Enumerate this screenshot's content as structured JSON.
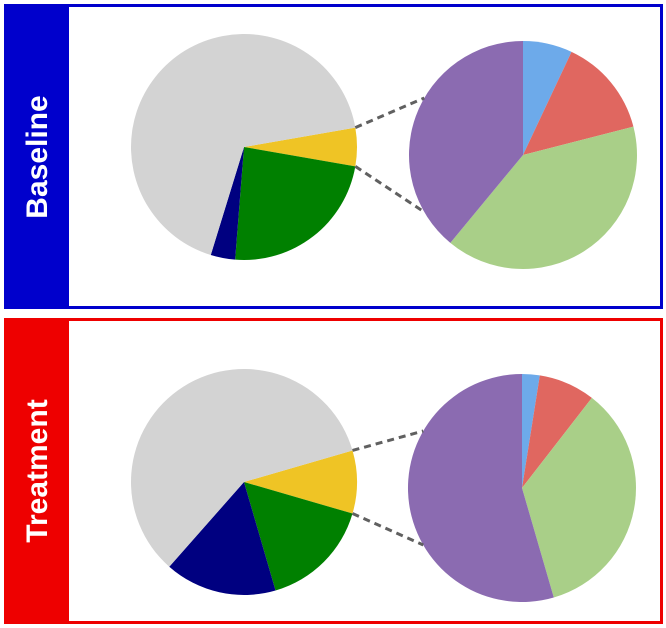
{
  "colors": {
    "baseline_frame": "#0000cc",
    "treatment_frame": "#ee0000",
    "gray": "#d3d3d3",
    "yellow": "#efc425",
    "green": "#008000",
    "navy": "#000080",
    "purple": "#8b6bb1",
    "blue": "#6daaea",
    "salmon": "#e06760",
    "light_green": "#a9cf88"
  },
  "chart_data": [
    {
      "type": "pie",
      "panel_label": "Baseline",
      "main_pie": [
        {
          "color": "yellow",
          "value": 5.5
        },
        {
          "color": "green",
          "value": 23.5
        },
        {
          "color": "navy",
          "value": 3.5
        },
        {
          "color": "gray",
          "value": 67.5
        }
      ],
      "detail_pie": [
        {
          "color": "blue",
          "value": 7
        },
        {
          "color": "salmon",
          "value": 14
        },
        {
          "color": "light_green",
          "value": 40
        },
        {
          "color": "purple",
          "value": 39
        }
      ]
    },
    {
      "type": "pie",
      "panel_label": "Treatment",
      "main_pie": [
        {
          "color": "yellow",
          "value": 9
        },
        {
          "color": "green",
          "value": 16
        },
        {
          "color": "navy",
          "value": 16
        },
        {
          "color": "gray",
          "value": 59
        }
      ],
      "detail_pie": [
        {
          "color": "blue",
          "value": 2.5
        },
        {
          "color": "salmon",
          "value": 8
        },
        {
          "color": "light_green",
          "value": 35
        },
        {
          "color": "purple",
          "value": 54.5
        }
      ]
    }
  ]
}
